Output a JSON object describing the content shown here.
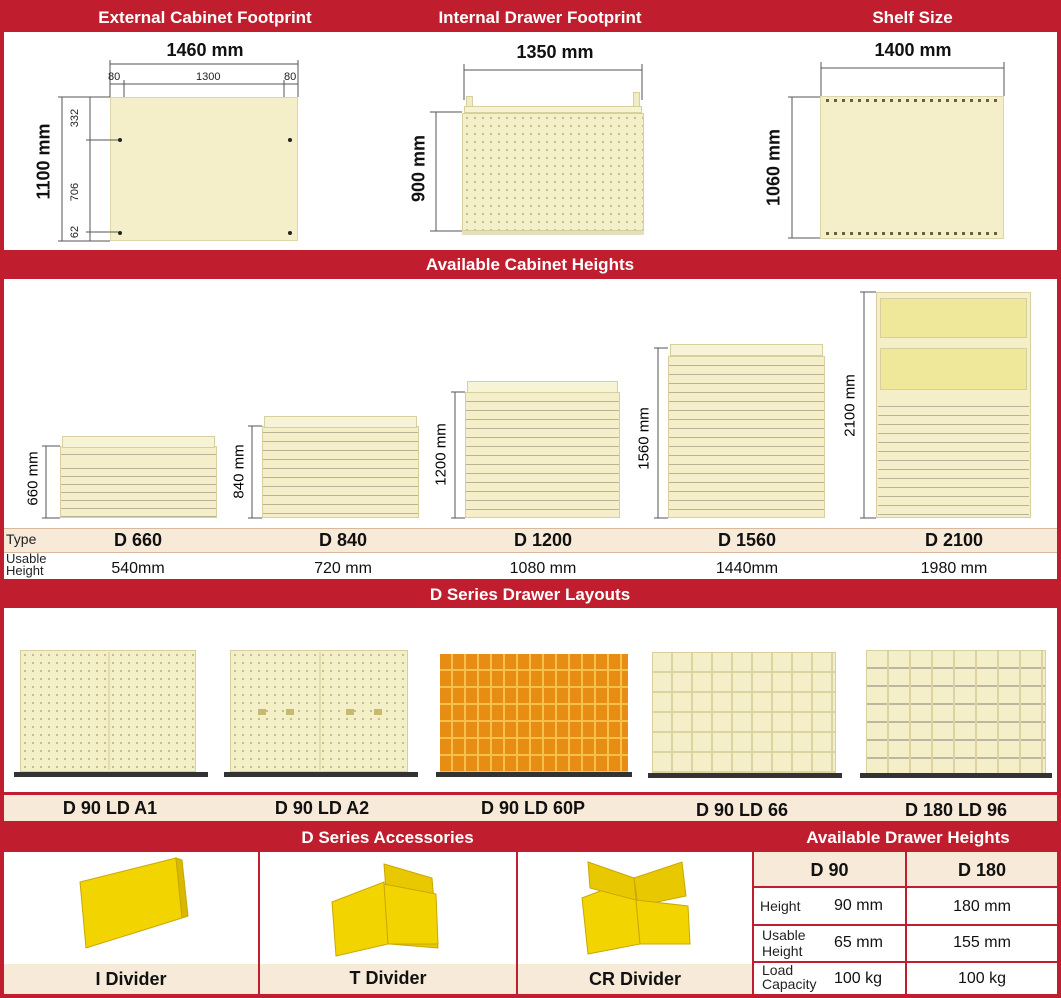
{
  "footprint": {
    "external": {
      "title": "External Cabinet Footprint",
      "width": "1460 mm",
      "height": "1100 mm",
      "dim_80_left": "80",
      "dim_1300": "1300",
      "dim_80_right": "80",
      "dim_332": "332",
      "dim_706": "706",
      "dim_62": "62"
    },
    "internal": {
      "title": "Internal Drawer Footprint",
      "width": "1350 mm",
      "height": "900 mm"
    },
    "shelf": {
      "title": "Shelf Size",
      "width": "1400 mm",
      "height": "1060 mm"
    }
  },
  "heights": {
    "title": "Available Cabinet Heights",
    "row_type_label": "Type",
    "row_usable_label": "Usable Height",
    "cabinets": [
      {
        "dim": "660 mm",
        "type": "D 660",
        "usable": "540mm"
      },
      {
        "dim": "840 mm",
        "type": "D 840",
        "usable": "720 mm"
      },
      {
        "dim": "1200 mm",
        "type": "D 1200",
        "usable": "1080 mm"
      },
      {
        "dim": "1560 mm",
        "type": "D 1560",
        "usable": "1440mm"
      },
      {
        "dim": "2100 mm",
        "type": "D 2100",
        "usable": "1980 mm"
      }
    ]
  },
  "layouts": {
    "title": "D Series Drawer Layouts",
    "items": [
      "D 90 LD A1",
      "D 90 LD A2",
      "D 90 LD 60P",
      "D 90 LD 66",
      "D 180 LD 96"
    ]
  },
  "accessories": {
    "title": "D Series Accessories",
    "items": [
      "I Divider",
      "T Divider",
      "CR Divider"
    ],
    "colors": {
      "divider": "#f2d400",
      "red": "#c01e2e",
      "cream": "#f4efc8"
    }
  },
  "drawer_heights": {
    "title": "Available Drawer Heights",
    "col1": "D 90",
    "col2": "D 180",
    "rows": [
      {
        "label": "Height",
        "d90": "90 mm",
        "d180": "180 mm"
      },
      {
        "label": "Usable Height",
        "d90": "65 mm",
        "d180": "155 mm"
      },
      {
        "label": "Load Capacity",
        "d90": "100 kg",
        "d180": "100 kg"
      }
    ]
  }
}
